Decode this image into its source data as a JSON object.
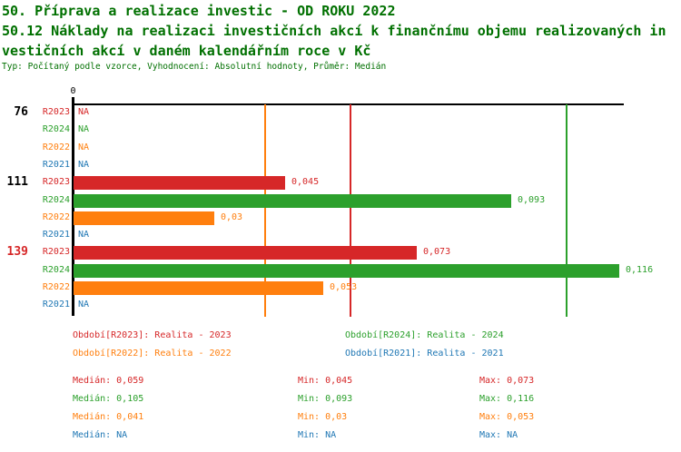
{
  "title": {
    "line1": "50. Příprava a realizace investic - OD ROKU 2022",
    "line2": "50.12 Náklady na realizaci investičních akcí k finančnímu objemu realizovaných in",
    "line3": "vestičních akcí v daném kalendářním roce v Kč",
    "meta": "Typ: Počítaný podle vzorce, Vyhodnocení: Absolutní hodnoty, Průměr: Medián"
  },
  "colors": {
    "title_green": "#007000",
    "r2023_red": "#d62728",
    "r2024_green": "#2ca02c",
    "r2022_orange": "#ff7f0e",
    "r2021_blue": "#1f77b4",
    "axis_black": "#000000"
  },
  "chart_data": {
    "type": "bar",
    "orientation": "horizontal",
    "x_axis": {
      "zero_label": "0",
      "implied_max": 0.12,
      "grid": false
    },
    "series_colors": {
      "R2023": "#d62728",
      "R2024": "#2ca02c",
      "R2022": "#ff7f0e",
      "R2021": "#1f77b4"
    },
    "groups": [
      {
        "label": "76",
        "label_color": "#000000",
        "bars": [
          {
            "series": "R2023",
            "value": null,
            "display": "NA"
          },
          {
            "series": "R2024",
            "value": null,
            "display": "NA"
          },
          {
            "series": "R2022",
            "value": null,
            "display": "NA"
          },
          {
            "series": "R2021",
            "value": null,
            "display": "NA"
          }
        ]
      },
      {
        "label": "111",
        "label_color": "#000000",
        "bars": [
          {
            "series": "R2023",
            "value": 0.045,
            "display": "0,045"
          },
          {
            "series": "R2024",
            "value": 0.093,
            "display": "0,093"
          },
          {
            "series": "R2022",
            "value": 0.03,
            "display": "0,03"
          },
          {
            "series": "R2021",
            "value": null,
            "display": "NA"
          }
        ]
      },
      {
        "label": "139",
        "label_color": "#d62728",
        "bars": [
          {
            "series": "R2023",
            "value": 0.073,
            "display": "0,073"
          },
          {
            "series": "R2024",
            "value": 0.116,
            "display": "0,116"
          },
          {
            "series": "R2022",
            "value": 0.053,
            "display": "0,053"
          },
          {
            "series": "R2021",
            "value": null,
            "display": "NA"
          }
        ]
      }
    ],
    "median_lines": [
      {
        "series": "R2023",
        "value": 0.059,
        "color": "#d62728"
      },
      {
        "series": "R2024",
        "value": 0.105,
        "color": "#2ca02c"
      },
      {
        "series": "R2022",
        "value": 0.041,
        "color": "#ff7f0e"
      }
    ]
  },
  "legend": {
    "items": [
      {
        "label": "Období[R2023]: Realita - 2023",
        "color": "#d62728",
        "col": 0,
        "row": 0
      },
      {
        "label": "Období[R2024]: Realita - 2024",
        "color": "#2ca02c",
        "col": 1,
        "row": 0
      },
      {
        "label": "Období[R2022]: Realita - 2022",
        "color": "#ff7f0e",
        "col": 0,
        "row": 1
      },
      {
        "label": "Období[R2021]: Realita - 2021",
        "color": "#1f77b4",
        "col": 1,
        "row": 1
      }
    ]
  },
  "stats": {
    "rows": [
      {
        "color": "#d62728",
        "cells": [
          "Medián: 0,059",
          "Min: 0,045",
          "Max: 0,073"
        ]
      },
      {
        "color": "#2ca02c",
        "cells": [
          "Medián: 0,105",
          "Min: 0,093",
          "Max: 0,116"
        ]
      },
      {
        "color": "#ff7f0e",
        "cells": [
          "Medián: 0,041",
          "Min: 0,03",
          "Max: 0,053"
        ]
      },
      {
        "color": "#1f77b4",
        "cells": [
          "Medián: NA",
          "Min: NA",
          "Max: NA"
        ]
      }
    ]
  }
}
